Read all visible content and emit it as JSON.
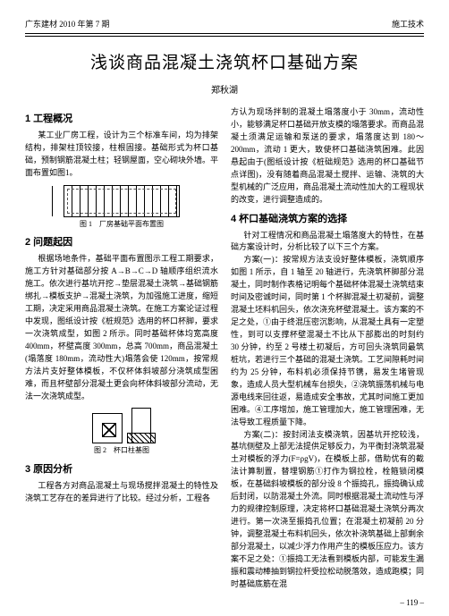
{
  "header": {
    "left": "广东建材 2010 年第 7 期",
    "right": "施工技术"
  },
  "title": "浅谈商品混凝土浇筑杯口基础方案",
  "author": "郑秋湖",
  "left": {
    "s1_title": "1 工程概况",
    "s1_p1": "某工业厂房工程，设计为三个标准车间，均为排架结构，排架柱顶铰接，柱根固接。基础形式为杯口基础，预制钢筋混凝土柱；轻钢屋面，空心砌块外墙。平面布置如图1。",
    "fig1_caption": "图 1　厂房基础平面布置图",
    "s2_title": "2 问题起因",
    "s2_p1": "根据场地条件，基础平面布置图示工程工期要求，施工方针对基础部分按 A→B→C→D 轴顺序组织流水施工。依次进行基坑开挖→垫层混凝土浇筑→基础钢筋绑扎→模板支护→混凝土浇筑，为加强施工进度，缩短工期，决定采用商品混凝土浇筑。在施工方案论证过程中发现，图纸设计按《桩规范》选用的杯口杯脚，要求一次浇筑成型，如图 2 所示。同时基础杯体均宽高度 400mm，杯壁高度 300mm，总高 700mm，商品混凝土(塌落度 180mm，流动性大)塌落会使 120mm，按常规方法片支好整体模板，不仅杯体斜坡部分浇筑成型困难，而且杯壁部分混凝土更会向杯体斜坡部分流动，无法一次浇筑成型。",
    "fig2_caption": "图 2　杯口柱基图",
    "s3_title": "3 原因分析",
    "s3_p1": "工程各方对商品混凝土与现场搅拌混凝土的特性及浇筑工艺存在的差异进行了比较。经过分析，工程各"
  },
  "right": {
    "p_top": "方认为现场拌制的混凝土塌落度小于 30mm，流动性小，能够满足杯口基础开放支模的塌落要求。而商品混凝土须满足运输和泵送的要求，塌落度达到 180～200mm，流动 1 更大，致使杯口基础浇筑困难。此因悬起由于(图纸设计按《桩础规范》选用的杯口基础节点详图)，没有随着商品混凝土搅拌、运输、浇筑的大型机械的广泛应用，商品混凝土流动性加大的工程现状的改变，进行调整造成的。",
    "s4_title": "4 杯口基础浇筑方案的选择",
    "s4_p1": "针对工程情况和商品混凝土塌落度大的特性，在基础方案设计时，分析比较了以下三个方案。",
    "s4_p2": "方案(一)：按常规方法支设好整体模板，浇筑顺序如图 1 所示，自 1 轴至 20 轴进行，先浇筑杯脚部分混凝土，同时制作表格记明每个基础杯体混凝土浇筑结束时间及密诚时间，同时第 1 个杯脚混凝土初凝前，调整混凝土坯料机回头，依次浇充杯壁混凝土。该方案的不足之处，①由于终混压密沉影响，从混凝土具有一定塑性，到可以支撑杯壁混凝土不比从下部膨出的时刻约 30 分钟，约至 2 号楼土初凝后，方可回头浇筑同最筑桩坑，若进行三个基础的混凝土浇筑。工艺间隙耗时间约为 25 分钟，布料机必须保持节镌，易发生堵管现象，造成人员大型机械车台损失，②浇筑振荡机械与电源电线来回往返，易造成安全事故，尤其时间施工更加困难。④工序增加，施工管理加大，施工管理困难，无法导致工程质量下降。",
    "s4_p3": "方案(二)：按封闭法支模浇筑，因基坑开挖较浅，基坑侧壁及上部无法提供足够反力，为平衡封浇筑混凝土对模板的浮力(F=ρgV)，在模板上部，借助优有的截法计算制置，替埋钢筋①打作为钢拉栓，栓箍锁闭模板，在基础斜坡模板的部分设 8 个振捣孔，振捣确认成后封闭，以防混凝土外流。同时根据混凝土流动性与浮力的规律控制原理，决定将杯口基础混凝土浇筑分两次进行。第一次浇至振捣孔位置；在混凝土初凝前 20 分钟，调整混凝土布料机回头，依次补浇筑基础上部剩余部分混凝土，以减少浮力作用产生的模板压应力。该方案不足之处：①振捣工无法看到模板内部，可能发生漏振和震动棒抽到钢拉杆受拉松动脱落效，造成跑模；同时基础底筋在混"
  },
  "page_number": "– 119 –"
}
